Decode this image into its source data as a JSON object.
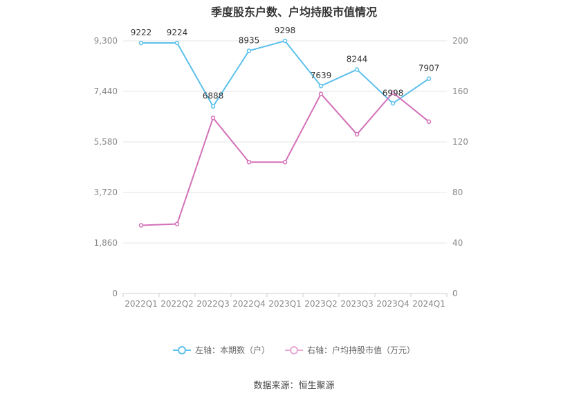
{
  "chart_data": {
    "type": "line",
    "title": "季度股东户数、户均持股市值情况",
    "categories": [
      "2022Q1",
      "2022Q2",
      "2022Q3",
      "2022Q4",
      "2023Q1",
      "2023Q2",
      "2023Q3",
      "2023Q4",
      "2024Q1"
    ],
    "left_axis": {
      "ticks": [
        "0",
        "1,860",
        "3,720",
        "5,580",
        "7,440",
        "9,300"
      ],
      "ylim": [
        0,
        9300
      ]
    },
    "right_axis": {
      "ticks": [
        "0",
        "40",
        "80",
        "120",
        "160",
        "200"
      ],
      "ylim": [
        0,
        200
      ]
    },
    "grid": true,
    "legend_position": "bottom",
    "series": [
      {
        "name": "左轴：本期数（户）",
        "axis": "left",
        "color": "#5bc0eb",
        "values": [
          9222,
          9224,
          6888,
          8935,
          9298,
          7639,
          8244,
          6998,
          7907
        ],
        "labels": [
          "9222",
          "9224",
          "6888",
          "8935",
          "9298",
          "7639",
          "8244",
          "6998",
          "7907"
        ]
      },
      {
        "name": "右轴：户均持股市值（万元）",
        "axis": "right",
        "color": "#d470b8",
        "values": [
          54,
          55,
          139,
          104,
          104,
          158,
          126,
          159,
          136
        ]
      }
    ]
  },
  "source": "数据来源：恒生聚源"
}
